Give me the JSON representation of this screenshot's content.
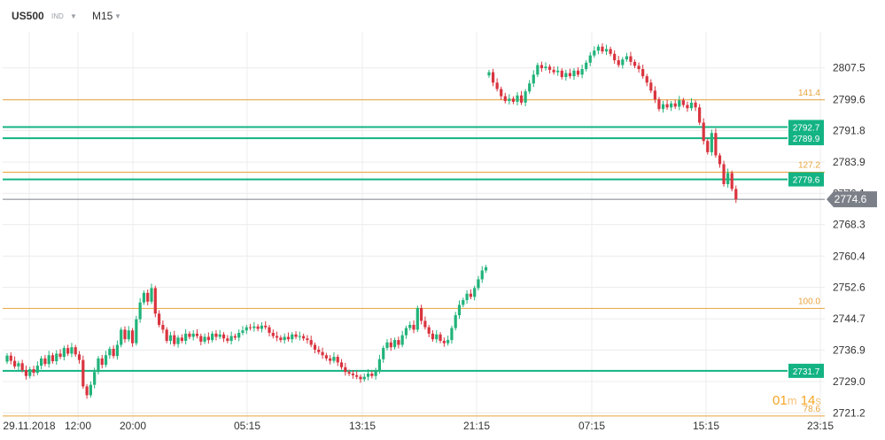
{
  "header": {
    "symbol": "US500",
    "badge": "IND",
    "timeframe": "M15"
  },
  "timer": {
    "minutes": "01",
    "minutes_unit": "m",
    "seconds": "14",
    "seconds_unit": "s"
  },
  "colors": {
    "up": "#21b37a",
    "down": "#d9343f",
    "fib": "#e8a33a",
    "level": "#13b383",
    "current": "#7b8088",
    "grid": "#ececec",
    "text": "#333333"
  },
  "chart_data": {
    "type": "candlestick",
    "ylim": [
      2718.6,
      2816.5
    ],
    "y_ticks": [
      "2807.5",
      "2799.6",
      "2791.8",
      "2783.9",
      "2776.1",
      "2768.3",
      "2760.4",
      "2752.6",
      "2744.7",
      "2736.9",
      "2729.0",
      "2721.2"
    ],
    "x_ticks": [
      "29.11.2018",
      "12:00",
      "20:00",
      "05:15",
      "13:15",
      "21:15",
      "07:15",
      "15:15",
      "23:15"
    ],
    "fib_levels": [
      {
        "label": "141.4",
        "value": 2799.5
      },
      {
        "label": "127.2",
        "value": 2781.4
      },
      {
        "label": "100.0",
        "value": 2747.3
      },
      {
        "label": "78.6",
        "value": 2720.4
      }
    ],
    "price_levels": [
      "2792.7",
      "2789.9",
      "2779.6",
      "2731.7"
    ],
    "current_price": "2774.6",
    "segments": [
      {
        "start": 2734.0,
        "closes": [
          2735.5,
          2734.2,
          2732.8,
          2733.6,
          2731.9,
          2730.4,
          2732.1,
          2731.2,
          2733.0,
          2734.8,
          2733.4,
          2735.6,
          2734.1,
          2736.0,
          2735.2,
          2737.4,
          2736.0,
          2737.6,
          2735.8,
          2734.4,
          2727.8,
          2725.6,
          2728.2,
          2731.4,
          2734.8,
          2733.2,
          2735.6,
          2737.2,
          2735.4,
          2738.2,
          2742.0,
          2739.6,
          2741.8,
          2738.6,
          2744.6,
          2748.8,
          2751.2,
          2749.0,
          2752.4,
          2746.0,
          2743.2,
          2742.0,
          2739.2,
          2740.6,
          2738.4,
          2740.0,
          2739.2,
          2741.0,
          2740.2,
          2741.0,
          2740.4,
          2739.0,
          2740.2,
          2739.4,
          2741.0,
          2740.2,
          2740.8,
          2739.8,
          2739.2,
          2740.4,
          2740.0,
          2741.2,
          2741.8,
          2742.6,
          2742.4,
          2742.8,
          2742.2,
          2743.0,
          2742.6,
          2741.2,
          2740.4,
          2740.0,
          2739.4,
          2740.2,
          2739.6,
          2740.8,
          2740.2,
          2740.4,
          2739.8,
          2739.4,
          2738.2,
          2737.0,
          2736.4,
          2735.6,
          2734.8,
          2734.2,
          2735.2,
          2733.8,
          2732.6,
          2731.4,
          2731.0,
          2730.6,
          2730.2,
          2729.6,
          2730.2,
          2731.0,
          2730.4,
          2731.6,
          2734.6,
          2737.4,
          2738.8,
          2737.6,
          2739.4,
          2738.2,
          2740.6,
          2742.4,
          2743.2,
          2742.0,
          2747.4,
          2744.2,
          2742.6,
          2741.0,
          2739.6,
          2740.8,
          2739.2,
          2738.6,
          2739.4,
          2742.4,
          2745.6,
          2748.2,
          2749.4,
          2751.0,
          2750.2,
          2752.4,
          2754.6,
          2756.8,
          2757.6
        ]
      },
      {
        "start": 2805.6,
        "closes": [
          2806.4,
          2803.8,
          2802.2,
          2800.4,
          2799.2,
          2799.8,
          2799.0,
          2800.6,
          2798.8,
          2801.6,
          2803.6,
          2805.8,
          2808.2,
          2807.4,
          2807.8,
          2807.0,
          2806.4,
          2806.8,
          2805.2,
          2806.2,
          2805.4,
          2806.8,
          2805.8,
          2807.2,
          2808.8,
          2810.6,
          2811.8,
          2812.8,
          2811.6,
          2812.2,
          2811.0,
          2809.4,
          2808.2,
          2809.6,
          2810.4,
          2809.0,
          2808.0,
          2807.2,
          2805.4,
          2803.8,
          2801.8,
          2799.6,
          2797.2,
          2798.4,
          2797.6,
          2798.6,
          2797.8,
          2799.4,
          2798.2,
          2797.4,
          2798.8,
          2797.6,
          2793.8,
          2789.2,
          2786.4,
          2791.2,
          2785.6,
          2783.4,
          2778.4,
          2781.2,
          2777.2,
          2774.6
        ]
      }
    ]
  }
}
